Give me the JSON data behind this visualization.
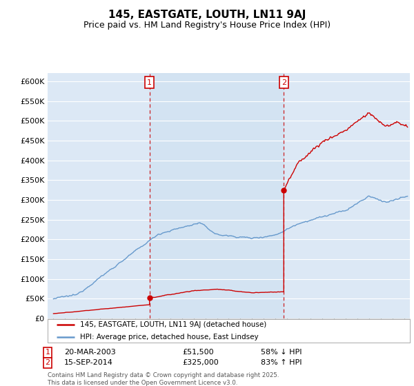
{
  "title": "145, EASTGATE, LOUTH, LN11 9AJ",
  "subtitle": "Price paid vs. HM Land Registry's House Price Index (HPI)",
  "sale1_date": "20-MAR-2003",
  "sale1_price": 51500,
  "sale1_hpi": "58% ↓ HPI",
  "sale1_label": "1",
  "sale2_date": "15-SEP-2014",
  "sale2_price": 325000,
  "sale2_hpi": "83% ↑ HPI",
  "sale2_label": "2",
  "legend_property": "145, EASTGATE, LOUTH, LN11 9AJ (detached house)",
  "legend_hpi": "HPI: Average price, detached house, East Lindsey",
  "footnote": "Contains HM Land Registry data © Crown copyright and database right 2025.\nThis data is licensed under the Open Government Licence v3.0.",
  "property_line_color": "#cc0000",
  "hpi_line_color": "#6699cc",
  "vline_color": "#cc0000",
  "background_color": "#dce8f5",
  "background_highlight": "#ccdff0",
  "ylim": [
    0,
    620000
  ],
  "yticks": [
    0,
    50000,
    100000,
    150000,
    200000,
    250000,
    300000,
    350000,
    400000,
    450000,
    500000,
    550000,
    600000
  ],
  "sale1_x": 2003.22,
  "sale2_x": 2014.71,
  "xmin": 1994.5,
  "xmax": 2025.5
}
